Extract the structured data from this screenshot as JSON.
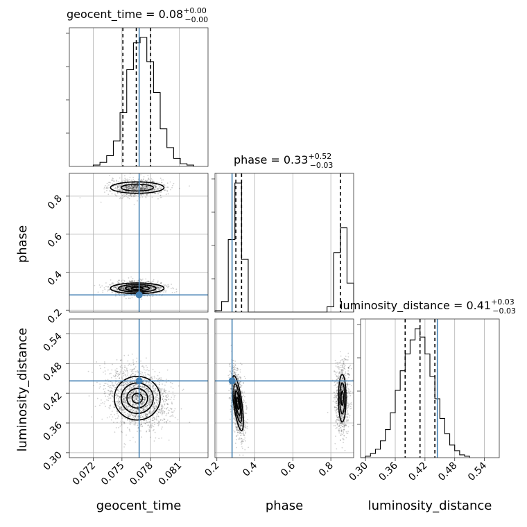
{
  "chart_data": {
    "type": "corner",
    "parameters": [
      "geocent_time",
      "phase",
      "luminosity_distance"
    ],
    "truths": {
      "geocent_time": 0.0768,
      "phase": 0.28,
      "luminosity_distance": 0.445
    },
    "titles": {
      "geocent_time": {
        "label": "geocent_time = ",
        "median": "0.08",
        "plus": "+0.00",
        "minus": "−0.00"
      },
      "phase": {
        "label": "phase = ",
        "median": "0.33",
        "plus": "+0.52",
        "minus": "−0.03"
      },
      "luminosity_distance": {
        "label": "luminosity_distance = ",
        "median": "0.41",
        "plus": "+0.03",
        "minus": "−0.03"
      }
    },
    "ranges": {
      "geocent_time": [
        0.0695,
        0.084
      ],
      "phase": [
        0.19,
        0.92
      ],
      "luminosity_distance": [
        0.29,
        0.57
      ]
    },
    "ticks": {
      "geocent_time": [
        "0.072",
        "0.075",
        "0.078",
        "0.081"
      ],
      "phase_x": [
        "0.2",
        "0.4",
        "0.6",
        "0.8"
      ],
      "phase_y": [
        "0.2",
        "0.4",
        "0.6",
        "0.8"
      ],
      "luminosity_distance_x": [
        "0.30",
        "0.36",
        "0.42",
        "0.48",
        "0.54"
      ],
      "luminosity_distance_y": [
        "0.30",
        "0.36",
        "0.42",
        "0.48",
        "0.54"
      ]
    },
    "tick_values": {
      "geocent_time": [
        0.072,
        0.075,
        0.078,
        0.081
      ],
      "phase": [
        0.2,
        0.4,
        0.6,
        0.8
      ],
      "luminosity_distance": [
        0.3,
        0.36,
        0.42,
        0.48,
        0.54
      ]
    },
    "quantiles": {
      "geocent_time": [
        0.0751,
        0.0765,
        0.078
      ],
      "phase": [
        0.3,
        0.33,
        0.85
      ],
      "luminosity_distance": [
        0.38,
        0.41,
        0.44
      ]
    },
    "histograms": {
      "geocent_time": {
        "edges": [
          0.072,
          0.0727,
          0.0734,
          0.0741,
          0.0748,
          0.0755,
          0.0762,
          0.0769,
          0.0776,
          0.0783,
          0.079,
          0.0797,
          0.0804,
          0.0811,
          0.0818,
          0.0825
        ],
        "counts": [
          1,
          3,
          8,
          19,
          40,
          72,
          92,
          96,
          78,
          55,
          28,
          14,
          6,
          2,
          1
        ]
      },
      "phase": {
        "edges": [
          0.19,
          0.225,
          0.26,
          0.295,
          0.33,
          0.365,
          0.4,
          0.78,
          0.815,
          0.85,
          0.885,
          0.92
        ],
        "counts": [
          1,
          8,
          55,
          98,
          40,
          0,
          0,
          4,
          45,
          64,
          22
        ]
      },
      "luminosity_distance": {
        "edges": [
          0.29,
          0.3,
          0.31,
          0.32,
          0.33,
          0.34,
          0.35,
          0.36,
          0.37,
          0.38,
          0.39,
          0.4,
          0.41,
          0.42,
          0.43,
          0.44,
          0.45,
          0.46,
          0.47,
          0.48,
          0.49,
          0.5,
          0.51
        ],
        "counts": [
          0,
          1,
          3,
          6,
          12,
          20,
          32,
          48,
          62,
          74,
          84,
          92,
          86,
          74,
          58,
          42,
          28,
          17,
          9,
          5,
          2,
          1
        ]
      }
    },
    "xlabels": [
      "geocent_time",
      "phase",
      "luminosity_distance"
    ],
    "ylabels": [
      "",
      "phase",
      "luminosity_distance"
    ]
  }
}
